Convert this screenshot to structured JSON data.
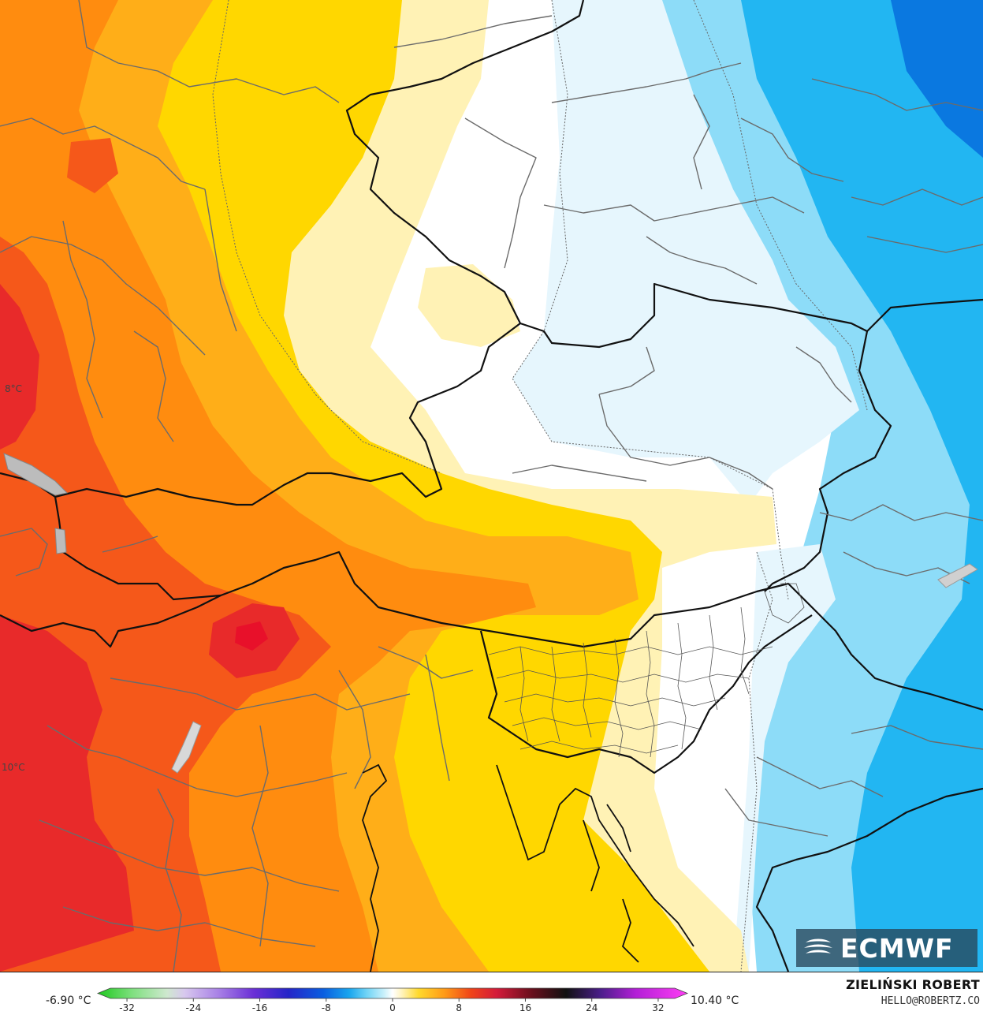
{
  "map": {
    "isotherm_labels": [
      "8°C",
      "10°C"
    ]
  },
  "legend": {
    "min_value": "-6.90 °C",
    "max_value": "10.40 °C",
    "ticks": [
      "-32",
      "-24",
      "-16",
      "-8",
      "0",
      "8",
      "16",
      "24",
      "32"
    ],
    "tick_values": [
      -32,
      -24,
      -16,
      -8,
      0,
      8,
      16,
      24,
      32
    ],
    "range": [
      -34,
      34
    ],
    "stops": [
      {
        "v": -34,
        "c": "#1fc81f"
      },
      {
        "v": -30,
        "c": "#7fe07f"
      },
      {
        "v": -26,
        "c": "#cfe8cf"
      },
      {
        "v": -24,
        "c": "#d8c8ee"
      },
      {
        "v": -20,
        "c": "#a77fe6"
      },
      {
        "v": -16,
        "c": "#6a2fd6"
      },
      {
        "v": -12,
        "c": "#2525c8"
      },
      {
        "v": -8,
        "c": "#0a5ee0"
      },
      {
        "v": -5,
        "c": "#19a6ee"
      },
      {
        "v": -3,
        "c": "#6fd3f6"
      },
      {
        "v": -1,
        "c": "#c8f0fb"
      },
      {
        "v": 0,
        "c": "#ffffff"
      },
      {
        "v": 1,
        "c": "#fff4c2"
      },
      {
        "v": 3,
        "c": "#ffd92b"
      },
      {
        "v": 6,
        "c": "#ff9a17"
      },
      {
        "v": 9,
        "c": "#f04418"
      },
      {
        "v": 12,
        "c": "#d41a3a"
      },
      {
        "v": 16,
        "c": "#6a0f1d"
      },
      {
        "v": 20,
        "c": "#111111"
      },
      {
        "v": 24,
        "c": "#4b1e8a"
      },
      {
        "v": 28,
        "c": "#b21fd6"
      },
      {
        "v": 34,
        "c": "#ff3df5"
      }
    ]
  },
  "credits": {
    "author": "ZIELIŃSKI ROBERT",
    "email": "HELLO@ROBERTZ.CO",
    "model": "ECMWF"
  },
  "colors": {
    "cold_dark": "#0a78e0",
    "cold": "#22b6f2",
    "cool": "#8ddcf8",
    "light_blue": "#e6f6fd",
    "zero": "#ffffff",
    "pale_yellow": "#fff2b5",
    "yellow": "#ffd700",
    "orange_light": "#ffae18",
    "orange": "#ff8c0f",
    "orange_red": "#f5581a",
    "red": "#e82a2a"
  }
}
